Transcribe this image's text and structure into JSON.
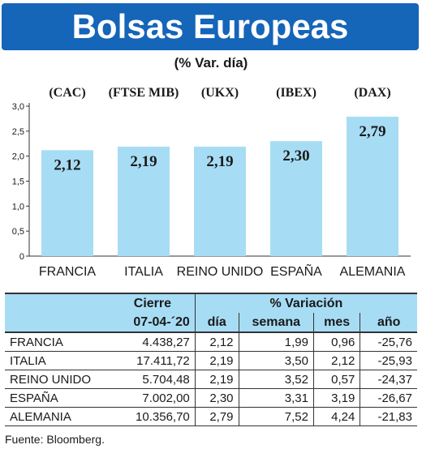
{
  "header": {
    "title": "Bolsas Europeas",
    "subtitle": "(% Var. día)"
  },
  "colors": {
    "title_bar": "#1565b8",
    "bar_fill": "#a7dcf5",
    "table_header": "#a7dcf5"
  },
  "chart_data": {
    "type": "bar",
    "index_labels": [
      "(CAC)",
      "(FTSE MIB)",
      "(UKX)",
      "(IBEX)",
      "(DAX)"
    ],
    "categories": [
      "FRANCIA",
      "ITALIA",
      "REINO UNIDO",
      "ESPAÑA",
      "ALEMANIA"
    ],
    "values": [
      2.12,
      2.19,
      2.19,
      2.3,
      2.79
    ],
    "data_labels": [
      "2,12",
      "2,19",
      "2,19",
      "2,30",
      "2,79"
    ],
    "y_ticks": [
      "0",
      "0,5",
      "1,0",
      "1,5",
      "2,0",
      "2,5",
      "3,0"
    ],
    "ylim": [
      0,
      3.0
    ],
    "grid": false
  },
  "table": {
    "header_cierre": "Cierre",
    "header_variacion": "% Variación",
    "header_date": "07-04-´20",
    "header_dia": "día",
    "header_semana": "semana",
    "header_mes": "mes",
    "header_anio": "año",
    "rows": [
      {
        "country": "FRANCIA",
        "cierre": "4.438,27",
        "dia": "2,12",
        "semana": "1,99",
        "mes": "0,96",
        "anio": "-25,76"
      },
      {
        "country": "ITALIA",
        "cierre": "17.411,72",
        "dia": "2,19",
        "semana": "3,50",
        "mes": "2,12",
        "anio": "-25,93"
      },
      {
        "country": "REINO UNIDO",
        "cierre": "5.704,48",
        "dia": "2,19",
        "semana": "3,52",
        "mes": "0,57",
        "anio": "-24,37"
      },
      {
        "country": "ESPAÑA",
        "cierre": "7.002,00",
        "dia": "2,30",
        "semana": "3,31",
        "mes": "3,19",
        "anio": "-26,67"
      },
      {
        "country": "ALEMANIA",
        "cierre": "10.356,70",
        "dia": "2,79",
        "semana": "7,52",
        "mes": "4,24",
        "anio": "-21,83"
      }
    ]
  },
  "footer": {
    "source": "Fuente: Bloomberg."
  }
}
